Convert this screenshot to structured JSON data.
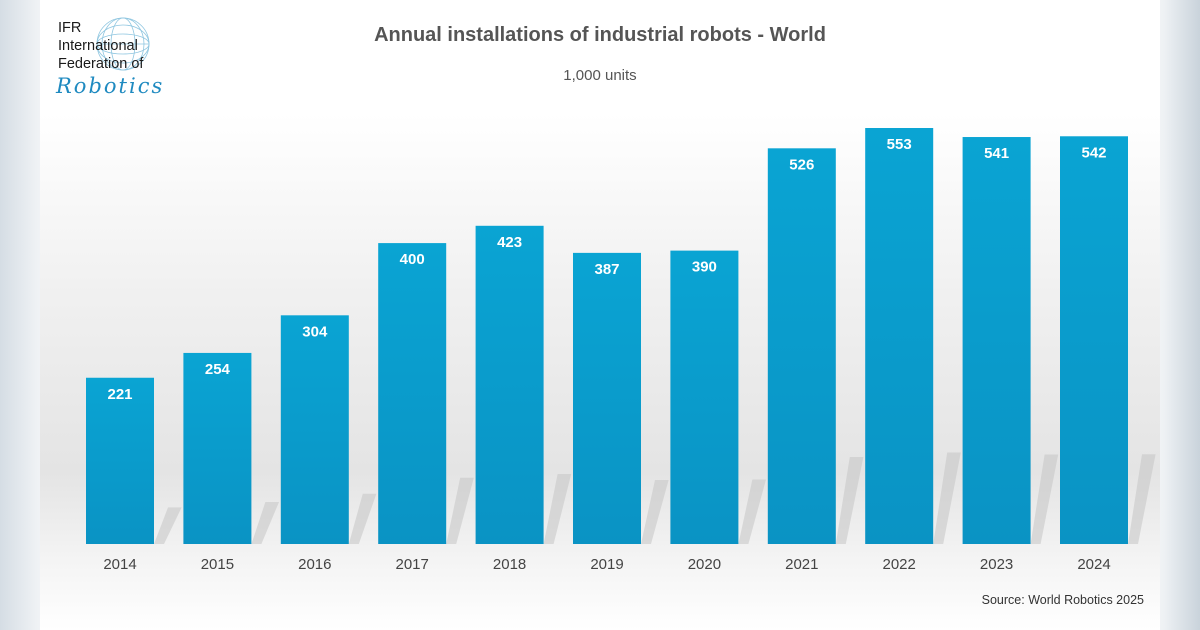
{
  "logo": {
    "line1": "IFR",
    "line2": "International",
    "line3": "Federation of",
    "script": "Robotics"
  },
  "source": "Source: World Robotics 2025",
  "colors": {
    "bar": "#0a9fcf",
    "bar_dark": "#0b83b0",
    "shadow": "#c4c4c4"
  },
  "chart_data": {
    "type": "bar",
    "title": "Annual installations of industrial robots - World",
    "subtitle": "1,000 units",
    "xlabel": "",
    "ylabel": "",
    "categories": [
      "2014",
      "2015",
      "2016",
      "2017",
      "2018",
      "2019",
      "2020",
      "2021",
      "2022",
      "2023",
      "2024"
    ],
    "values": [
      221,
      254,
      304,
      400,
      423,
      387,
      390,
      526,
      553,
      541,
      542
    ],
    "data_labels": [
      "221",
      "254",
      "304",
      "400",
      "423",
      "387",
      "390",
      "526",
      "553",
      "541",
      "542"
    ],
    "ylim": [
      0,
      553
    ],
    "grid": false,
    "legend": "none"
  }
}
